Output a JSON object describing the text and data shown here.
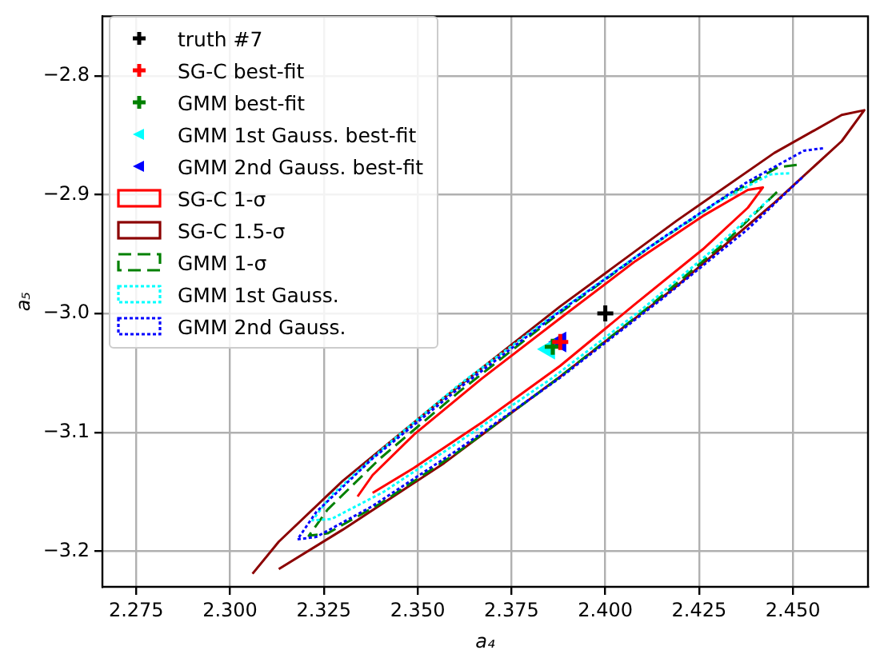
{
  "chart_data": {
    "type": "scatter",
    "xlabel": "a₄",
    "ylabel": "a₅",
    "xlim": [
      2.266,
      2.47
    ],
    "ylim": [
      -3.23,
      -2.75
    ],
    "xticks": [
      {
        "value": 2.275,
        "label": "2.275"
      },
      {
        "value": 2.3,
        "label": "2.300"
      },
      {
        "value": 2.325,
        "label": "2.325"
      },
      {
        "value": 2.35,
        "label": "2.350"
      },
      {
        "value": 2.375,
        "label": "2.375"
      },
      {
        "value": 2.4,
        "label": "2.400"
      },
      {
        "value": 2.425,
        "label": "2.425"
      },
      {
        "value": 2.45,
        "label": "2.450"
      }
    ],
    "yticks": [
      {
        "value": -3.2,
        "label": "−3.2"
      },
      {
        "value": -3.1,
        "label": "−3.1"
      },
      {
        "value": -3.0,
        "label": "−3.0"
      },
      {
        "value": -2.9,
        "label": "−2.9"
      },
      {
        "value": -2.8,
        "label": "−2.8"
      }
    ],
    "grid": true,
    "legend": "top left",
    "series": [
      {
        "name": "truth #7",
        "type": "scatter",
        "marker": "cross",
        "color": "#000000",
        "x": [
          2.4
        ],
        "values": [
          -3.0
        ]
      },
      {
        "name": "SG-C best-fit",
        "type": "scatter",
        "marker": "cross",
        "color": "#ff0000",
        "x": [
          2.388
        ],
        "values": [
          -3.024
        ]
      },
      {
        "name": "GMM best-fit",
        "type": "scatter",
        "marker": "cross",
        "color": "#008000",
        "x": [
          2.386
        ],
        "values": [
          -3.028
        ]
      },
      {
        "name": "GMM 1st Gauss. best-fit",
        "type": "scatter",
        "marker": "triangle",
        "color": "#00ffff",
        "x": [
          2.385
        ],
        "values": [
          -3.03
        ]
      },
      {
        "name": "GMM 2nd Gauss. best-fit",
        "type": "scatter",
        "marker": "triangle",
        "color": "#0000ff",
        "x": [
          2.388
        ],
        "values": [
          -3.024
        ]
      },
      {
        "name": "SG-C 1-σ",
        "type": "line",
        "line_style": "solid",
        "color": "#ff0000",
        "x": [
          2.334,
          2.338,
          2.349,
          2.367,
          2.388,
          2.408,
          2.426,
          2.438,
          2.442,
          2.438,
          2.426,
          2.408,
          2.388,
          2.367,
          2.349,
          2.338
        ],
        "values": [
          -3.154,
          -3.136,
          -3.102,
          -3.055,
          -3.004,
          -2.956,
          -2.918,
          -2.896,
          -2.894,
          -2.911,
          -2.946,
          -2.992,
          -3.044,
          -3.092,
          -3.13,
          -3.151
        ]
      },
      {
        "name": "SG-C 1.5-σ",
        "type": "line",
        "line_style": "solid",
        "color": "#8b0000",
        "x": [
          2.306,
          2.313,
          2.33,
          2.357,
          2.388,
          2.419,
          2.445,
          2.463,
          2.469,
          2.463,
          2.445,
          2.419,
          2.388,
          2.357,
          2.33,
          2.313
        ],
        "values": [
          -3.219,
          -3.192,
          -3.141,
          -3.071,
          -2.994,
          -2.922,
          -2.865,
          -2.833,
          -2.829,
          -2.855,
          -2.907,
          -2.977,
          -3.053,
          -3.126,
          -3.182,
          -3.215
        ]
      },
      {
        "name": "GMM 1-σ",
        "type": "line",
        "line_style": "dashed",
        "color": "#008000",
        "x": [
          2.451,
          2.446,
          2.432,
          2.411,
          2.386,
          2.361,
          2.34,
          2.326,
          2.321,
          2.326,
          2.34,
          2.361,
          2.386,
          2.411,
          2.432,
          2.446
        ],
        "values": [
          -2.875,
          -2.877,
          -2.902,
          -2.946,
          -3.004,
          -3.066,
          -3.122,
          -3.165,
          -3.187,
          -3.185,
          -3.16,
          -3.116,
          -3.058,
          -2.996,
          -2.94,
          -2.897
        ]
      },
      {
        "name": "GMM 1st Gauss.",
        "type": "line",
        "line_style": "dotted",
        "color": "#00ffff",
        "x": [
          2.449,
          2.444,
          2.43,
          2.41,
          2.386,
          2.361,
          2.341,
          2.327,
          2.322,
          2.327,
          2.341,
          2.361,
          2.386,
          2.41,
          2.43,
          2.444
        ],
        "values": [
          -2.882,
          -2.883,
          -2.906,
          -2.948,
          -3.002,
          -3.06,
          -3.113,
          -3.153,
          -3.174,
          -3.173,
          -3.15,
          -3.108,
          -3.054,
          -2.996,
          -2.943,
          -2.903
        ]
      },
      {
        "name": "GMM 2nd Gauss.",
        "type": "line",
        "line_style": "dotted",
        "color": "#0000ff",
        "x": [
          2.458,
          2.453,
          2.438,
          2.415,
          2.388,
          2.361,
          2.338,
          2.323,
          2.318,
          2.323,
          2.338,
          2.361,
          2.388,
          2.415,
          2.438,
          2.453
        ],
        "values": [
          -2.861,
          -2.863,
          -2.889,
          -2.937,
          -2.998,
          -3.063,
          -3.122,
          -3.167,
          -3.19,
          -3.188,
          -3.162,
          -3.114,
          -3.054,
          -2.988,
          -2.929,
          -2.884
        ]
      }
    ]
  }
}
